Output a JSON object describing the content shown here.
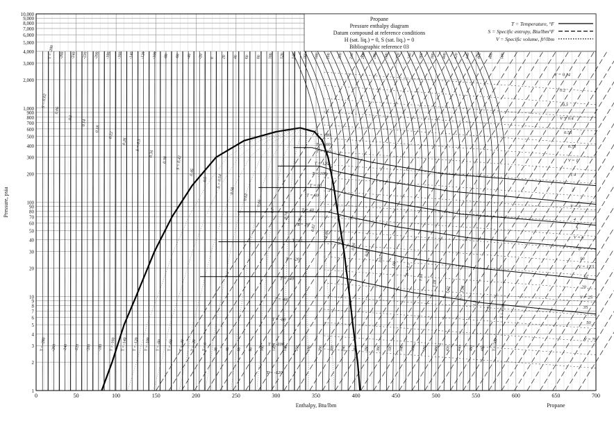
{
  "chart_data": {
    "type": "line",
    "title_lines": [
      "Propane",
      "Pressure enthalpy diagram",
      "Datum compound at reference conditions",
      "H (sat. liq.) = 0, S (sat. liq.) = 0",
      "Bibliographic reference 03"
    ],
    "legend": [
      {
        "label": "T = Temperature, °F",
        "style": "solid"
      },
      {
        "label": "S = Specific entropy, Btu/lbm°F",
        "style": "dashed"
      },
      {
        "label": "V = Specific volume, ft³/lbm",
        "style": "dotted"
      }
    ],
    "legend_position": "top-right",
    "xlabel": "Enthalpy, Btu/lbm",
    "ylabel": "Pressure, psia",
    "corner_label": "Propane",
    "xlim": [
      0,
      700
    ],
    "ylim": [
      1,
      10000
    ],
    "yscale": "log",
    "grid": true,
    "x_ticks": [
      0,
      50,
      100,
      150,
      200,
      250,
      300,
      350,
      400,
      450,
      500,
      550,
      600,
      650,
      700
    ],
    "y_tick_labels": [
      "1",
      "2",
      "3",
      "4",
      "5",
      "6",
      "7",
      "8",
      "9",
      "10",
      "20",
      "30",
      "40",
      "50",
      "60",
      "70",
      "80",
      "90",
      "100",
      "200",
      "300",
      "400",
      "500",
      "600",
      "700",
      "800",
      "900",
      "1,000",
      "2,000",
      "3,000",
      "4,000",
      "5,000",
      "6,000",
      "7,000",
      "8,000",
      "9,000",
      "10,000"
    ],
    "y_tick_values": [
      1,
      2,
      3,
      4,
      5,
      6,
      7,
      8,
      9,
      10,
      20,
      30,
      40,
      50,
      60,
      70,
      80,
      90,
      100,
      200,
      300,
      400,
      500,
      600,
      700,
      800,
      900,
      1000,
      2000,
      3000,
      4000,
      5000,
      6000,
      7000,
      8000,
      9000,
      10000
    ],
    "saturation_dome": {
      "liquid": [
        [
          82,
          1
        ],
        [
          95,
          2
        ],
        [
          110,
          5
        ],
        [
          125,
          10
        ],
        [
          148,
          30
        ],
        [
          170,
          70
        ],
        [
          195,
          150
        ],
        [
          225,
          300
        ],
        [
          260,
          450
        ],
        [
          300,
          560
        ],
        [
          330,
          616
        ]
      ],
      "vapor": [
        [
          330,
          616
        ],
        [
          348,
          560
        ],
        [
          358,
          450
        ],
        [
          365,
          300
        ],
        [
          372,
          150
        ],
        [
          378,
          70
        ],
        [
          385,
          30
        ],
        [
          392,
          10
        ],
        [
          396,
          5
        ],
        [
          402,
          2
        ],
        [
          405,
          1
        ]
      ]
    },
    "series": [
      {
        "name": "T = -40",
        "values": [
          [
            205,
            16.2
          ],
          [
            378,
            16.2
          ],
          [
            410,
            14
          ],
          [
            470,
            11
          ],
          [
            560,
            8.5
          ],
          [
            700,
            6.5
          ]
        ]
      },
      {
        "name": "T = 0",
        "values": [
          [
            228,
            38
          ],
          [
            372,
            38
          ],
          [
            400,
            33
          ],
          [
            460,
            26
          ],
          [
            550,
            20
          ],
          [
            700,
            15
          ]
        ]
      },
      {
        "name": "T = 40",
        "values": [
          [
            252,
            79
          ],
          [
            365,
            79
          ],
          [
            390,
            70
          ],
          [
            450,
            55
          ],
          [
            540,
            42
          ],
          [
            700,
            32
          ]
        ]
      },
      {
        "name": "T = 80",
        "values": [
          [
            278,
            143
          ],
          [
            360,
            143
          ],
          [
            385,
            125
          ],
          [
            440,
            100
          ],
          [
            530,
            75
          ],
          [
            700,
            57
          ]
        ]
      },
      {
        "name": "T = 120",
        "values": [
          [
            302,
            242
          ],
          [
            354,
            242
          ],
          [
            378,
            210
          ],
          [
            430,
            170
          ],
          [
            520,
            130
          ],
          [
            700,
            95
          ]
        ]
      },
      {
        "name": "T = 160",
        "values": [
          [
            322,
            380
          ],
          [
            345,
            380
          ],
          [
            372,
            330
          ],
          [
            420,
            265
          ],
          [
            510,
            200
          ],
          [
            700,
            150
          ]
        ]
      }
    ],
    "T_labels": [
      "T = 180",
      "T = 160",
      "T = 140",
      "T = 120",
      "T = 100",
      "T = 80",
      "T = 60",
      "T = 40",
      "T = 20",
      "T = 0",
      "T = -20",
      "T = -40",
      "T = -60",
      "T = -80",
      "T = -100",
      "T = -120"
    ],
    "T_label_positions": [
      [
        350,
        500
      ],
      [
        350,
        400
      ],
      [
        350,
        335
      ],
      [
        348,
        250
      ],
      [
        345,
        195
      ],
      [
        342,
        145
      ],
      [
        338,
        115
      ],
      [
        332,
        80
      ],
      [
        326,
        56
      ],
      [
        320,
        38
      ],
      [
        312,
        24
      ],
      [
        305,
        15
      ],
      [
        298,
        9
      ],
      [
        295,
        5.5
      ],
      [
        290,
        3
      ],
      [
        288,
        1.5
      ]
    ],
    "V_labels": [
      "V = 0.14",
      "0.2",
      "0.3",
      "V = 0.4",
      "0.55",
      "0.75",
      "V = 1",
      "1.4",
      "2",
      "V = 3",
      "4",
      "5",
      "V = 6",
      "8",
      "10",
      "V = 12.5",
      "16",
      "20",
      "V = 25",
      "35",
      "50",
      "V = 70"
    ],
    "V_label_positions": [
      [
        648,
        2200
      ],
      [
        655,
        1500
      ],
      [
        658,
        1050
      ],
      [
        655,
        750
      ],
      [
        660,
        530
      ],
      [
        665,
        380
      ],
      [
        665,
        270
      ],
      [
        668,
        190
      ],
      [
        670,
        130
      ],
      [
        668,
        88
      ],
      [
        672,
        64
      ],
      [
        675,
        51
      ],
      [
        672,
        41
      ],
      [
        678,
        31
      ],
      [
        680,
        24.5
      ],
      [
        678,
        20
      ],
      [
        684,
        15.5
      ],
      [
        682,
        12.2
      ],
      [
        680,
        9.5
      ],
      [
        684,
        7.4
      ],
      [
        688,
        5.1
      ],
      [
        685,
        3.4
      ]
    ],
    "S_labels": [
      "S = 0.02",
      "0.06",
      "0.1",
      "0.14",
      "0.18",
      "0.22",
      "0.26",
      "S = 0.3",
      "0.34",
      "0.38",
      "S = 0.42",
      "0.46",
      "0.5",
      "S = 0.54",
      "0.58",
      "0.62",
      "0.66",
      "0.7",
      "0.74",
      "0.78",
      "0.82",
      "0.86",
      "0.9",
      "0.94",
      "0.98",
      "1.02",
      "1.06",
      "S = 1.1",
      "1.14",
      "1.18",
      "1.22",
      "S = 1.26",
      "1.3",
      "1.34",
      "S = 1.38"
    ],
    "top_T_labels": [
      "T = -280",
      "-260",
      "-240",
      "-220",
      "-200",
      "-180",
      "-160",
      "-140",
      "-120",
      "-100",
      "-80",
      "-60",
      "-40",
      "-20",
      "0",
      "20",
      "40",
      "60",
      "80",
      "100",
      "120",
      "140",
      "160",
      "180",
      "200",
      "220",
      "240",
      "260",
      "280",
      "300",
      "320",
      "340",
      "360",
      "380",
      "400",
      "420",
      "440",
      "460",
      "480",
      "500"
    ],
    "bottom_T_labels": [
      "T = -280",
      "-260",
      "-240",
      "-220",
      "-200",
      "-180",
      "T = -160",
      "T = -140",
      "T = -120",
      "T = -100",
      "T = -80",
      "T = -60",
      "T = -40",
      "T = -20",
      "T = 0",
      "20",
      "40",
      "60",
      "80",
      "100",
      "120",
      "140",
      "160",
      "180",
      "200",
      "220",
      "240",
      "260",
      "280",
      "300",
      "320",
      "340",
      "360",
      "380",
      "400",
      "420",
      "440",
      "460",
      "480",
      "T = 500"
    ]
  }
}
